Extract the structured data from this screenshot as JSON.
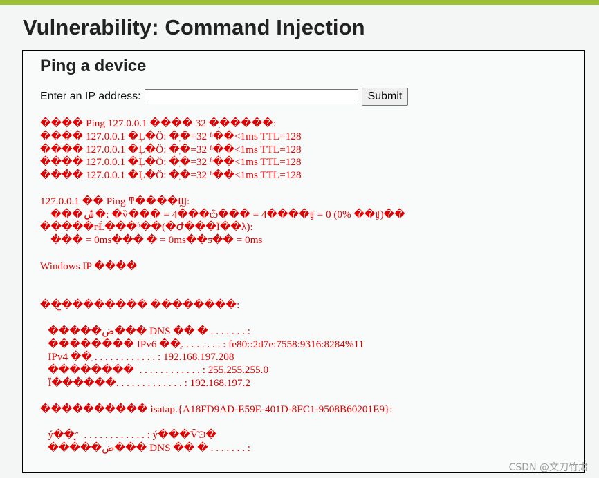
{
  "page": {
    "title": "Vulnerability: Command Injection",
    "accent_color": "#9cbf35"
  },
  "ping_section": {
    "heading": "Ping a device",
    "ip_label": "Enter an IP address:",
    "ip_value": "",
    "submit_label": "Submit"
  },
  "output": {
    "color": "#e00000",
    "lines": [
      "���� Ping 127.0.0.1 ���� 32 �ֽ�����:",
      "���� 127.0.0.1 �Ļ�Ӧ: �ֽ�=32 ʱ��<1ms TTL=128",
      "���� 127.0.0.1 �Ļ�Ӧ: �ֽ�=32 ʱ��<1ms TTL=128",
      "���� 127.0.0.1 �Ļ�Ӧ: �ֽ�=32 ʱ��<1ms TTL=128",
      "���� 127.0.0.1 �Ļ�Ӧ: �ֽ�=32 ʱ��<1ms TTL=128",
      "",
      "127.0.0.1 �� Ping ͳ����Ϣ:",
      "    ���ݰ�: �ѷ��� = 4���ѽ��� = 4����ʧ = 0 (0% ��ʧ)��",
      "�����г̵Ĺ���ʱ��(�Ժ���Ϊ��λ):",
      "    ��� = 0ms��� � = 0ms��ƽ�� = 0ms",
      "",
      "Windows IP ����",
      "",
      "",
      "��̫�������� ��������:",
      "",
      "   �����ض��� DNS �� � . . . . . . . :",
      "   �������� IPv6 ��ַ. . . . . . . . : fe80::2d7e:7558:9316:8284%11",
      "   IPv4 ��ַ . . . . . . . . . . . . : 192.168.197.208",
      "   ��������  . . . . . . . . . . . . : 255.255.255.0",
      "   Ĭ������. . . . . . . . . . . . . : 192.168.197.2",
      "",
      "���������� isatap.{A18FD9AD-E59E-401D-8FC1-9508B60201E9}:",
      "",
      "   ý��״̬  . . . . . . . . . . . . : ý���ѶϿ�",
      "   �����ض��� DNS �� � . . . . . . . :"
    ]
  },
  "watermark": "CSDN @文刀竹肃"
}
